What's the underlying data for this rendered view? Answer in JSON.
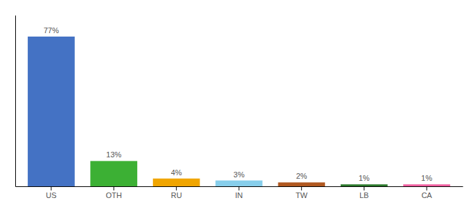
{
  "chart_data": {
    "type": "bar",
    "categories": [
      "US",
      "OTH",
      "RU",
      "IN",
      "TW",
      "LB",
      "CA"
    ],
    "values": [
      77,
      13,
      4,
      3,
      2,
      1,
      1
    ],
    "value_labels": [
      "77%",
      "13%",
      "4%",
      "3%",
      "2%",
      "1%",
      "1%"
    ],
    "colors": [
      "#4472c4",
      "#3cb034",
      "#f0a500",
      "#87ceeb",
      "#b05820",
      "#2d7a2d",
      "#f060a0"
    ],
    "ylim": [
      0,
      88
    ],
    "data_labels": true,
    "tick_labels": "x"
  }
}
